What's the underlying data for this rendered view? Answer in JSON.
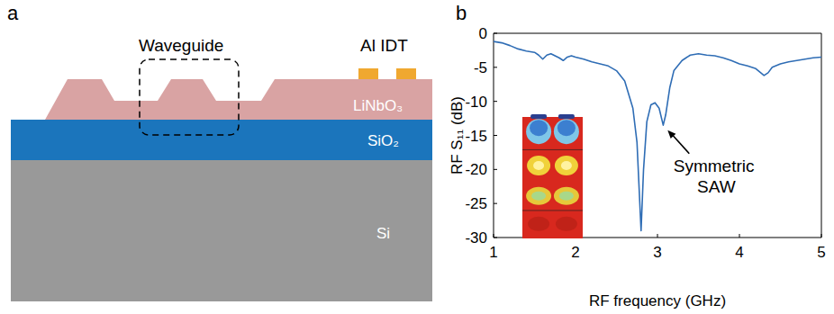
{
  "panel_labels": [
    "a",
    "b"
  ],
  "diagram": {
    "labels": {
      "waveguide": "Waveguide",
      "idt": "Al IDT",
      "film": "LiNbO₃",
      "oxide": "SiO₂",
      "substrate": "Si"
    }
  },
  "chart_data": {
    "type": "line",
    "x_label": "RF frequency (GHz)",
    "y_label": "RF S₁₁ (dB)",
    "color": "#2f6db5",
    "x": [
      1.0,
      1.1,
      1.2,
      1.3,
      1.4,
      1.5,
      1.55,
      1.6,
      1.65,
      1.7,
      1.75,
      1.8,
      1.85,
      1.9,
      1.95,
      2.0,
      2.1,
      2.2,
      2.3,
      2.4,
      2.5,
      2.6,
      2.7,
      2.75,
      2.8,
      2.83,
      2.87,
      2.92,
      2.97,
      3.02,
      3.07,
      3.1,
      3.15,
      3.2,
      3.3,
      3.4,
      3.5,
      3.6,
      3.7,
      3.8,
      3.9,
      4.0,
      4.1,
      4.2,
      4.3,
      4.35,
      4.4,
      4.5,
      4.6,
      4.7,
      4.8,
      4.9,
      5.0
    ],
    "values": [
      -1.2,
      -1.4,
      -1.8,
      -2.3,
      -2.6,
      -2.8,
      -3.2,
      -3.8,
      -3.2,
      -3.0,
      -3.3,
      -3.6,
      -4.0,
      -3.5,
      -3.3,
      -3.5,
      -3.8,
      -4.2,
      -4.5,
      -4.8,
      -5.5,
      -7.0,
      -11.0,
      -16.0,
      -29.0,
      -20.0,
      -13.0,
      -10.5,
      -10.2,
      -11.0,
      -13.5,
      -12.0,
      -8.0,
      -5.5,
      -4.0,
      -3.2,
      -3.0,
      -3.2,
      -3.3,
      -3.6,
      -4.0,
      -4.5,
      -4.8,
      -5.2,
      -6.2,
      -5.8,
      -5.0,
      -4.5,
      -4.2,
      -4.0,
      -3.8,
      -3.6,
      -3.5
    ],
    "xlim": [
      1,
      5
    ],
    "xticks": [
      1,
      2,
      3,
      4,
      5
    ],
    "ylim": [
      -30,
      0
    ],
    "yticks": [
      -30,
      -25,
      -20,
      -15,
      -10,
      -5,
      0
    ],
    "annotations": [
      {
        "text": "Symmetric SAW",
        "x": 3.08,
        "y": -13.7
      }
    ]
  }
}
